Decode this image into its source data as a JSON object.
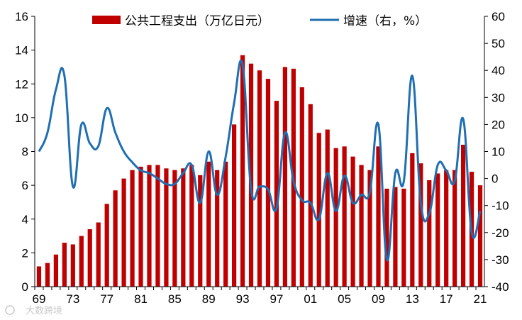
{
  "chart_data": {
    "type": "bar+line",
    "years": [
      1969,
      1970,
      1971,
      1972,
      1973,
      1974,
      1975,
      1976,
      1977,
      1978,
      1979,
      1980,
      1981,
      1982,
      1983,
      1984,
      1985,
      1986,
      1987,
      1988,
      1989,
      1990,
      1991,
      1992,
      1993,
      1994,
      1995,
      1996,
      1997,
      1998,
      1999,
      2000,
      2001,
      2002,
      2003,
      2004,
      2005,
      2006,
      2007,
      2008,
      2009,
      2010,
      2011,
      2012,
      2013,
      2014,
      2015,
      2016,
      2017,
      2018,
      2019,
      2020,
      2021
    ],
    "x_tick_labels": [
      "69",
      "73",
      "77",
      "81",
      "85",
      "89",
      "93",
      "97",
      "01",
      "05",
      "09",
      "13",
      "17",
      "21"
    ],
    "x_tick_years": [
      1969,
      1973,
      1977,
      1981,
      1985,
      1989,
      1993,
      1997,
      2001,
      2005,
      2009,
      2013,
      2017,
      2021
    ],
    "series": [
      {
        "name": "公共工程支出（万亿日元）",
        "type": "bar",
        "axis": "left",
        "color": "#C00000",
        "values": [
          1.2,
          1.4,
          1.9,
          2.6,
          2.5,
          3.0,
          3.4,
          3.8,
          4.9,
          5.7,
          6.4,
          6.9,
          7.1,
          7.2,
          7.2,
          7.0,
          6.9,
          7.0,
          7.2,
          6.6,
          7.4,
          6.9,
          7.4,
          9.6,
          13.7,
          13.2,
          12.8,
          12.3,
          11.0,
          13.0,
          12.9,
          11.8,
          10.8,
          9.1,
          9.3,
          8.2,
          8.3,
          7.7,
          7.2,
          6.9,
          8.3,
          5.8,
          5.9,
          5.8,
          7.9,
          7.3,
          6.3,
          6.7,
          6.9,
          6.9,
          8.4,
          6.8,
          6.0
        ]
      },
      {
        "name": "增速（右，%）",
        "type": "line",
        "axis": "right",
        "color": "#1F6FB2",
        "values": [
          10,
          17,
          33,
          38,
          -3,
          20,
          13,
          12,
          26,
          17,
          10,
          6,
          3,
          2,
          0,
          -2,
          -2,
          2,
          5,
          -9,
          10,
          -6,
          8,
          28,
          42,
          -4,
          -3,
          -4,
          -11,
          17,
          -1,
          -8,
          -9,
          -15,
          2,
          -12,
          1,
          -9,
          -6,
          -5,
          20,
          -30,
          2,
          -1,
          38,
          -9,
          -13,
          5,
          3,
          -1,
          22,
          -20,
          -12
        ]
      }
    ],
    "y_left": {
      "min": 0,
      "max": 16,
      "step": 2,
      "tick_labels": [
        "0",
        "2",
        "4",
        "6",
        "8",
        "10",
        "12",
        "14",
        "16"
      ]
    },
    "y_right": {
      "min": -40,
      "max": 60,
      "step": 10,
      "tick_labels": [
        "-40",
        "-30",
        "-20",
        "-10",
        "0",
        "10",
        "20",
        "30",
        "40",
        "50",
        "60"
      ]
    },
    "legend": {
      "placement": "top-center",
      "bar_label": "公共工程支出（万亿日元）",
      "line_label": "增速（右，%）"
    },
    "grid": false,
    "title": "",
    "xlabel": "",
    "ylabel": ""
  },
  "watermark": {
    "text": "大数跨境"
  }
}
